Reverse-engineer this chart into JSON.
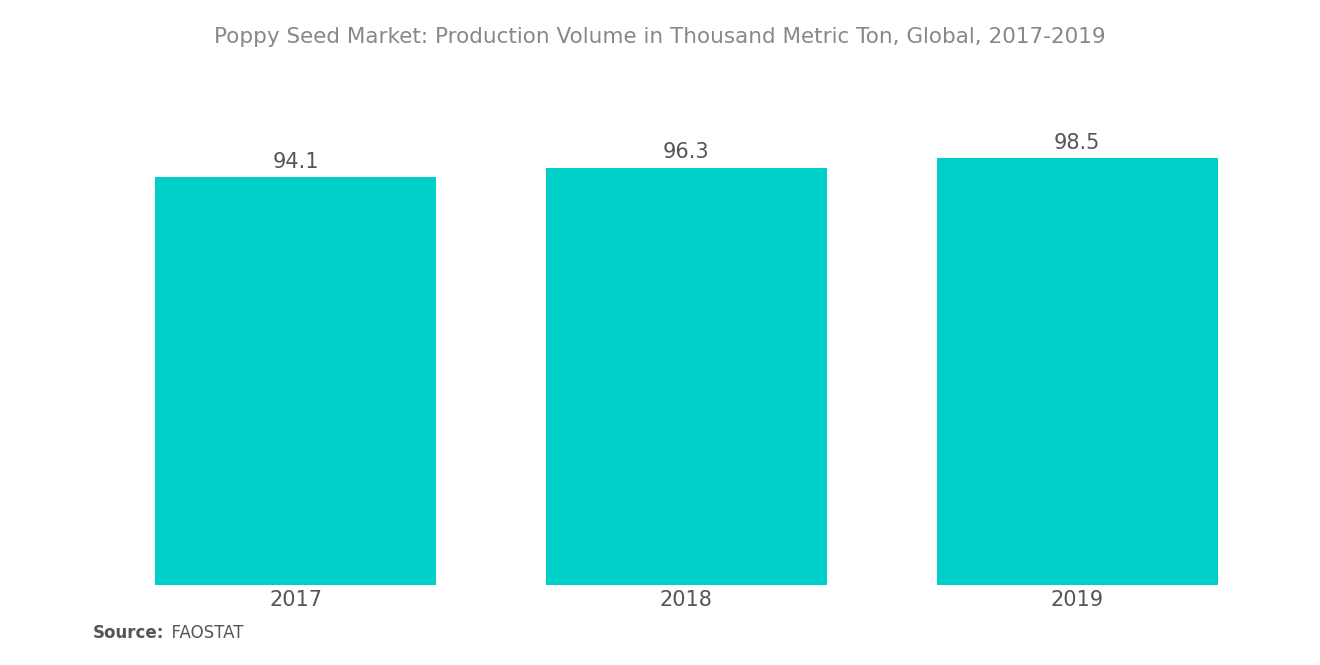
{
  "title": "Poppy Seed Market: Production Volume in Thousand Metric Ton, Global, 2017-2019",
  "categories": [
    "2017",
    "2018",
    "2019"
  ],
  "values": [
    94.1,
    96.3,
    98.5
  ],
  "bar_color": "#00CEC9",
  "background_color": "#ffffff",
  "label_color": "#555555",
  "title_color": "#888888",
  "source_label": "Source:",
  "source_value": "  FAOSTAT",
  "bar_width": 0.72,
  "ylim": [
    0,
    115
  ],
  "value_fontsize": 15,
  "tick_fontsize": 15,
  "title_fontsize": 15.5,
  "source_fontsize": 12
}
